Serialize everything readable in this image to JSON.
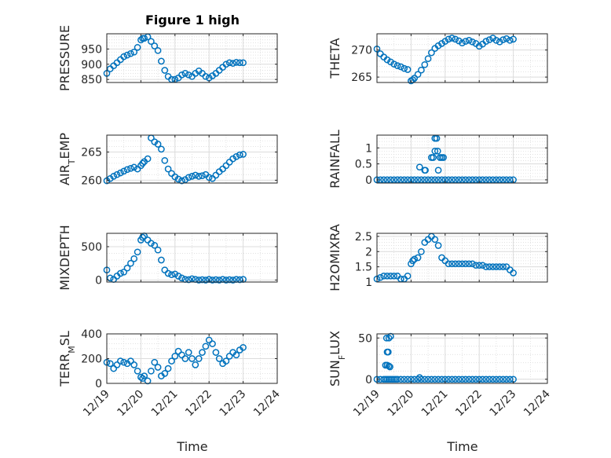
{
  "figure": {
    "title": "Figure 1 high",
    "xlabel": "Time",
    "x_tick_labels": [
      "12/19",
      "12/20",
      "12/21",
      "12/22",
      "12/23",
      "12/24"
    ],
    "marker_color": "#0072bd"
  },
  "chart_data": [
    {
      "type": "scatter",
      "ylabel": "PRESSURE",
      "ylabel_sub": "",
      "ylim": [
        840,
        1000
      ],
      "yticks": [
        850,
        900,
        950
      ],
      "xlim": [
        0,
        5
      ],
      "grid": true,
      "x": [
        0,
        0.1,
        0.2,
        0.3,
        0.4,
        0.5,
        0.6,
        0.7,
        0.8,
        0.9,
        1.0,
        1.05,
        1.1,
        1.2,
        1.3,
        1.4,
        1.5,
        1.6,
        1.7,
        1.8,
        1.9,
        2.0,
        2.1,
        2.2,
        2.3,
        2.4,
        2.5,
        2.6,
        2.7,
        2.8,
        2.9,
        3.0,
        3.1,
        3.2,
        3.3,
        3.4,
        3.5,
        3.6,
        3.7,
        3.8,
        3.9,
        4.0
      ],
      "y": [
        870,
        885,
        895,
        905,
        915,
        925,
        930,
        935,
        940,
        955,
        980,
        985,
        985,
        990,
        975,
        960,
        945,
        910,
        880,
        860,
        850,
        850,
        855,
        865,
        870,
        865,
        860,
        870,
        878,
        870,
        860,
        855,
        862,
        870,
        880,
        890,
        900,
        905,
        903,
        906,
        905,
        905
      ]
    },
    {
      "type": "scatter",
      "ylabel": "THETA",
      "ylabel_sub": "",
      "ylim": [
        264,
        273
      ],
      "yticks": [
        265,
        270
      ],
      "xlim": [
        0,
        5
      ],
      "grid": true,
      "x": [
        0,
        0.1,
        0.2,
        0.3,
        0.4,
        0.5,
        0.6,
        0.7,
        0.8,
        0.9,
        1.0,
        1.05,
        1.1,
        1.2,
        1.3,
        1.4,
        1.5,
        1.6,
        1.7,
        1.8,
        1.9,
        2.0,
        2.1,
        2.2,
        2.3,
        2.4,
        2.5,
        2.6,
        2.7,
        2.8,
        2.9,
        3.0,
        3.1,
        3.2,
        3.3,
        3.4,
        3.5,
        3.6,
        3.7,
        3.8,
        3.9,
        4.0
      ],
      "y": [
        270.2,
        269.3,
        268.7,
        268.2,
        267.8,
        267.4,
        267.1,
        266.9,
        266.6,
        266.4,
        264.3,
        264.5,
        264.8,
        265.5,
        266.3,
        267.3,
        268.4,
        269.5,
        270.3,
        270.8,
        271.2,
        271.6,
        272.0,
        272.2,
        272.0,
        271.7,
        271.3,
        271.6,
        271.8,
        271.5,
        271.2,
        270.7,
        271.1,
        271.6,
        271.9,
        272.2,
        271.8,
        271.5,
        271.9,
        272.1,
        271.8,
        272.0
      ]
    },
    {
      "type": "scatter",
      "ylabel": "AIR",
      "ylabel_sub": "T",
      "ylabel_suffix": "EMP",
      "ylim": [
        259.5,
        268
      ],
      "yticks": [
        260,
        265
      ],
      "xlim": [
        0,
        5
      ],
      "grid": true,
      "x": [
        0,
        0.1,
        0.2,
        0.3,
        0.4,
        0.5,
        0.6,
        0.7,
        0.8,
        0.9,
        1.0,
        1.05,
        1.1,
        1.2,
        1.3,
        1.4,
        1.5,
        1.6,
        1.7,
        1.8,
        1.9,
        2.0,
        2.1,
        2.2,
        2.3,
        2.4,
        2.5,
        2.6,
        2.7,
        2.8,
        2.9,
        3.0,
        3.1,
        3.2,
        3.3,
        3.4,
        3.5,
        3.6,
        3.7,
        3.8,
        3.9,
        4.0
      ],
      "y": [
        259.9,
        260.3,
        260.7,
        261.0,
        261.3,
        261.6,
        261.9,
        262.1,
        262.3,
        262.0,
        262.6,
        263.0,
        263.3,
        263.8,
        267.5,
        266.8,
        266.4,
        265.5,
        263.5,
        262.0,
        261.2,
        260.6,
        260.2,
        259.9,
        260.1,
        260.5,
        260.7,
        260.9,
        260.7,
        260.8,
        261.0,
        260.5,
        260.3,
        260.9,
        261.5,
        262.0,
        262.6,
        263.2,
        263.8,
        264.2,
        264.5,
        264.6
      ]
    },
    {
      "type": "scatter",
      "ylabel": "RAINFALL",
      "ylabel_sub": "",
      "ylim": [
        -0.1,
        1.4
      ],
      "yticks": [
        0,
        0.5,
        1
      ],
      "xlim": [
        0,
        5
      ],
      "grid": true,
      "x": [
        0,
        0.1,
        0.2,
        0.3,
        0.4,
        0.5,
        0.6,
        0.7,
        0.8,
        0.9,
        1.0,
        1.1,
        1.2,
        1.3,
        1.4,
        1.5,
        1.6,
        1.7,
        1.8,
        1.9,
        2.0,
        2.1,
        2.2,
        2.3,
        2.4,
        2.5,
        2.6,
        2.7,
        2.8,
        2.9,
        3.0,
        3.1,
        3.2,
        3.3,
        3.4,
        3.5,
        3.6,
        3.7,
        3.8,
        3.9,
        4.0,
        1.25,
        1.4,
        1.42,
        1.6,
        1.65,
        1.7,
        1.75,
        1.8,
        1.85,
        1.9,
        1.95,
        1.7,
        1.78
      ],
      "y": [
        0,
        0,
        0,
        0,
        0,
        0,
        0,
        0,
        0,
        0,
        0,
        0,
        0,
        0,
        0,
        0,
        0,
        0,
        0,
        0,
        0,
        0,
        0,
        0,
        0,
        0,
        0,
        0,
        0,
        0,
        0,
        0,
        0,
        0,
        0,
        0,
        0,
        0,
        0,
        0,
        0,
        0.4,
        0.3,
        0.3,
        0.7,
        0.7,
        1.3,
        1.3,
        0.3,
        0.7,
        0.7,
        0.7,
        0.9,
        0.9
      ]
    },
    {
      "type": "scatter",
      "ylabel": "MIXDEPTH",
      "ylabel_sub": "",
      "ylim": [
        -30,
        700
      ],
      "yticks": [
        0,
        500
      ],
      "xlim": [
        0,
        5
      ],
      "grid": true,
      "x": [
        0,
        0.1,
        0.2,
        0.3,
        0.4,
        0.5,
        0.6,
        0.7,
        0.8,
        0.9,
        1.0,
        1.05,
        1.1,
        1.2,
        1.3,
        1.4,
        1.5,
        1.6,
        1.7,
        1.8,
        1.9,
        2.0,
        2.1,
        2.2,
        2.3,
        2.4,
        2.5,
        2.6,
        2.7,
        2.8,
        2.9,
        3.0,
        3.1,
        3.2,
        3.3,
        3.4,
        3.5,
        3.6,
        3.7,
        3.8,
        3.9,
        4.0
      ],
      "y": [
        150,
        30,
        10,
        60,
        100,
        120,
        180,
        250,
        320,
        420,
        600,
        640,
        660,
        600,
        550,
        520,
        450,
        300,
        150,
        100,
        80,
        90,
        60,
        30,
        10,
        5,
        20,
        10,
        0,
        5,
        0,
        10,
        0,
        5,
        0,
        10,
        0,
        5,
        0,
        10,
        5,
        10
      ]
    },
    {
      "type": "scatter",
      "ylabel": "H2OMIXRA",
      "ylabel_sub": "",
      "ylim": [
        1,
        2.6
      ],
      "yticks": [
        1,
        1.5,
        2,
        2.5
      ],
      "xlim": [
        0,
        5
      ],
      "grid": true,
      "x": [
        0,
        0.1,
        0.2,
        0.3,
        0.4,
        0.5,
        0.6,
        0.7,
        0.8,
        0.9,
        1.0,
        1.05,
        1.1,
        1.2,
        1.3,
        1.4,
        1.5,
        1.6,
        1.7,
        1.8,
        1.9,
        2.0,
        2.1,
        2.2,
        2.3,
        2.4,
        2.5,
        2.6,
        2.7,
        2.8,
        2.9,
        3.0,
        3.1,
        3.2,
        3.3,
        3.4,
        3.5,
        3.6,
        3.7,
        3.8,
        3.9,
        4.0
      ],
      "y": [
        1.1,
        1.15,
        1.2,
        1.2,
        1.2,
        1.2,
        1.2,
        1.1,
        1.1,
        1.2,
        1.6,
        1.7,
        1.75,
        1.8,
        2.0,
        2.3,
        2.4,
        2.5,
        2.4,
        2.2,
        1.8,
        1.7,
        1.6,
        1.6,
        1.6,
        1.6,
        1.6,
        1.6,
        1.6,
        1.6,
        1.55,
        1.55,
        1.55,
        1.5,
        1.5,
        1.5,
        1.5,
        1.5,
        1.5,
        1.5,
        1.4,
        1.3
      ]
    },
    {
      "type": "scatter",
      "ylabel": "TERR",
      "ylabel_sub": "M",
      "ylabel_suffix": "SL",
      "ylim": [
        0,
        400
      ],
      "yticks": [
        0,
        200,
        400
      ],
      "xlim": [
        0,
        5
      ],
      "grid": true,
      "x": [
        0,
        0.1,
        0.2,
        0.3,
        0.4,
        0.5,
        0.6,
        0.7,
        0.8,
        0.9,
        1.0,
        1.05,
        1.1,
        1.2,
        1.3,
        1.4,
        1.5,
        1.6,
        1.7,
        1.8,
        1.9,
        2.0,
        2.1,
        2.2,
        2.3,
        2.4,
        2.5,
        2.6,
        2.7,
        2.8,
        2.9,
        3.0,
        3.1,
        3.2,
        3.3,
        3.4,
        3.5,
        3.6,
        3.7,
        3.8,
        3.9,
        4.0
      ],
      "y": [
        170,
        160,
        120,
        150,
        180,
        170,
        160,
        180,
        150,
        100,
        50,
        40,
        60,
        20,
        100,
        170,
        130,
        60,
        80,
        120,
        180,
        220,
        260,
        230,
        200,
        250,
        200,
        150,
        200,
        250,
        300,
        350,
        320,
        250,
        200,
        160,
        180,
        220,
        250,
        230,
        270,
        290
      ]
    },
    {
      "type": "scatter",
      "ylabel": "SUN",
      "ylabel_sub": "F",
      "ylabel_suffix": "LUX",
      "ylim": [
        -5,
        55
      ],
      "yticks": [
        0,
        50
      ],
      "xlim": [
        0,
        5
      ],
      "grid": true,
      "x": [
        0,
        0.1,
        0.2,
        0.25,
        0.3,
        0.35,
        0.4,
        0.45,
        0.5,
        0.55,
        0.6,
        0.25,
        0.3,
        0.35,
        0.4,
        0.28,
        0.33,
        0.3,
        0.35,
        0.38,
        0.7,
        0.8,
        0.9,
        1.0,
        1.1,
        1.2,
        1.3,
        1.4,
        1.5,
        1.6,
        1.7,
        1.8,
        1.9,
        2.0,
        2.1,
        2.2,
        2.3,
        2.4,
        2.5,
        2.6,
        2.7,
        2.8,
        2.9,
        3.0,
        3.1,
        3.2,
        3.3,
        3.4,
        3.5,
        3.6,
        3.7,
        3.8,
        3.9,
        4.0,
        1.25
      ],
      "y": [
        0,
        0,
        0,
        0,
        0,
        0,
        0,
        0,
        0,
        0,
        0,
        17,
        33,
        50,
        52,
        50,
        33,
        17,
        16,
        15,
        0,
        0,
        0,
        0,
        0,
        0,
        0,
        0,
        0,
        0,
        0,
        0,
        0,
        0,
        0,
        0,
        0,
        0,
        0,
        0,
        0,
        0,
        0,
        0,
        0,
        0,
        0,
        0,
        0,
        0,
        0,
        0,
        0,
        0,
        2
      ]
    }
  ]
}
